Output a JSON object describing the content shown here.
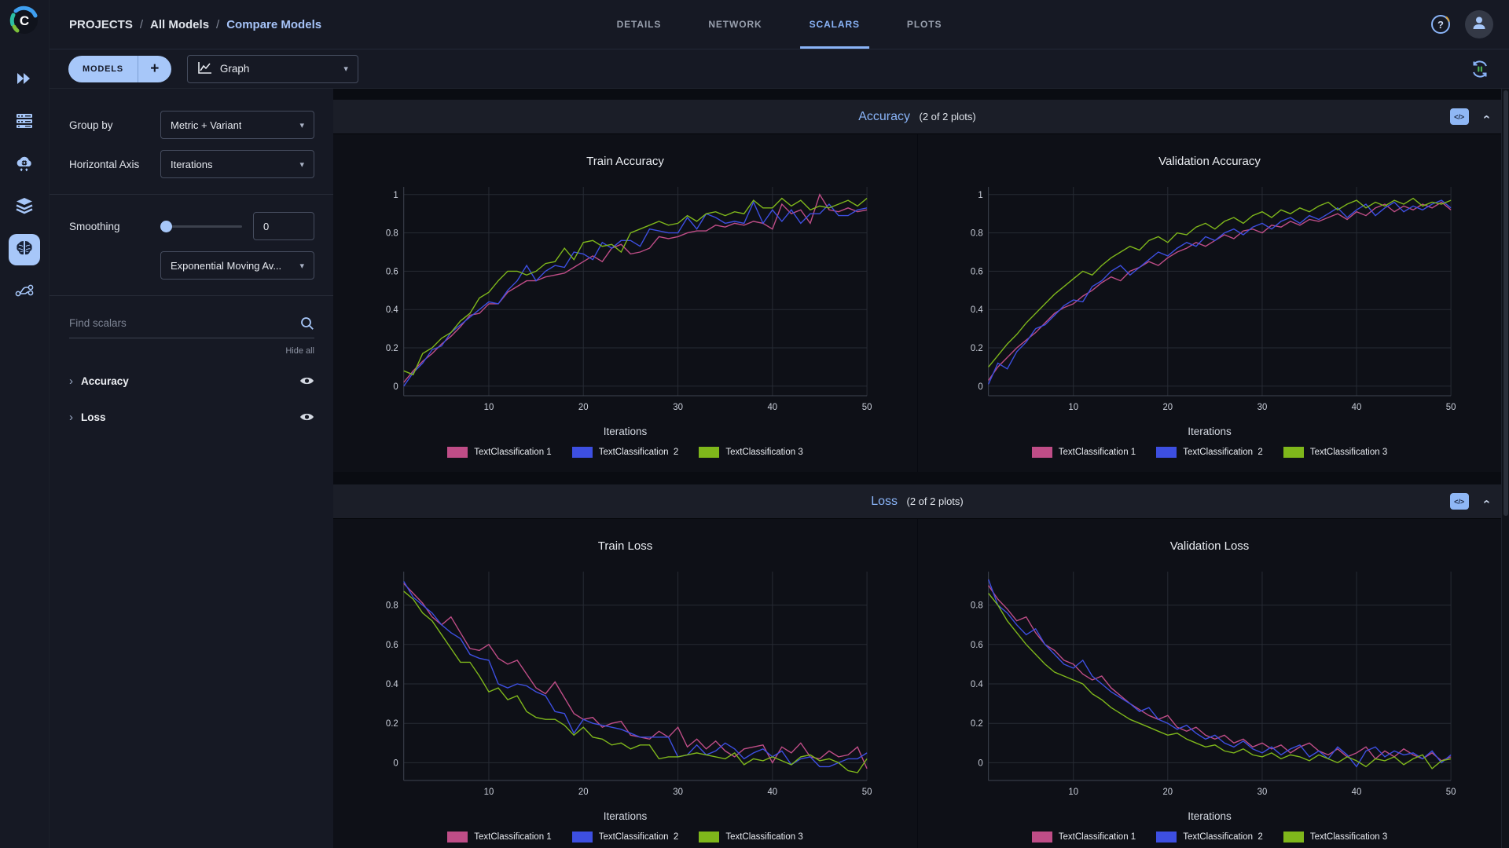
{
  "header": {
    "breadcrumb": [
      "PROJECTS",
      "All Models",
      "Compare Models"
    ],
    "separator": "/",
    "tabs": [
      {
        "label": "DETAILS",
        "active": false
      },
      {
        "label": "NETWORK",
        "active": false
      },
      {
        "label": "SCALARS",
        "active": true
      },
      {
        "label": "PLOTS",
        "active": false
      }
    ]
  },
  "toolbar": {
    "models_button": "MODELS",
    "add_button": "+",
    "view_dropdown": "Graph"
  },
  "icons": {
    "caret_down": "▾",
    "chevron_right": "›",
    "embed": "</>",
    "help": "?",
    "logo_letter": "C"
  },
  "nav_rail_items": [
    {
      "icon": "double-chevron-icon"
    },
    {
      "icon": "server-icon"
    },
    {
      "icon": "cloud-gear-icon"
    },
    {
      "icon": "layers-icon"
    },
    {
      "icon": "brain-icon",
      "active": true
    },
    {
      "icon": "pipeline-icon"
    }
  ],
  "controls": {
    "group_by_label": "Group by",
    "group_by_value": "Metric + Variant",
    "horizontal_axis_label": "Horizontal Axis",
    "horizontal_axis_value": "Iterations",
    "smoothing_label": "Smoothing",
    "smoothing_value": "0",
    "smoothing_type_value": "Exponential Moving Av..."
  },
  "scalars_list": {
    "search_placeholder": "Find scalars",
    "hide_all": "Hide all",
    "groups": [
      {
        "label": "Accuracy"
      },
      {
        "label": "Loss"
      }
    ]
  },
  "sections": [
    {
      "title": "Accuracy",
      "count_note": "(2 of 2 plots)"
    },
    {
      "title": "Loss",
      "count_note": "(2 of 2 plots)"
    }
  ],
  "accent_colors": {
    "light_blue": "#a7c7f9",
    "link_blue": "#8ab4f8",
    "series_pink": "#bf4d87",
    "series_blue": "#3d4fe1",
    "series_green": "#7fb71b"
  },
  "chart_data": [
    {
      "type": "line",
      "title": "Train Accuracy",
      "xlabel": "Iterations",
      "ylabel": "",
      "grid": true,
      "legend_position": "bottom",
      "x_start": 1,
      "x_step": 1,
      "n_points": 50,
      "xticks": [
        10,
        20,
        30,
        40,
        50
      ],
      "yticks": [
        0,
        0.2,
        0.4,
        0.6,
        0.8,
        1
      ],
      "ylim": [
        -0.05,
        1.04
      ],
      "series": [
        {
          "name": "TextClassification 1",
          "color": "#bf4d87",
          "values": [
            0.02,
            0.08,
            0.13,
            0.17,
            0.22,
            0.26,
            0.31,
            0.37,
            0.38,
            0.43,
            0.43,
            0.49,
            0.52,
            0.55,
            0.55,
            0.57,
            0.58,
            0.59,
            0.62,
            0.65,
            0.68,
            0.65,
            0.72,
            0.74,
            0.69,
            0.7,
            0.72,
            0.78,
            0.77,
            0.78,
            0.8,
            0.81,
            0.81,
            0.84,
            0.83,
            0.85,
            0.84,
            0.86,
            0.85,
            0.82,
            0.95,
            0.9,
            0.92,
            0.85,
            1.0,
            0.92,
            0.91,
            0.93,
            0.91,
            0.92
          ]
        },
        {
          "name": "TextClassification  2",
          "color": "#3d4fe1",
          "values": [
            0.0,
            0.07,
            0.12,
            0.19,
            0.21,
            0.28,
            0.32,
            0.36,
            0.4,
            0.44,
            0.43,
            0.5,
            0.55,
            0.63,
            0.55,
            0.6,
            0.63,
            0.62,
            0.7,
            0.69,
            0.66,
            0.75,
            0.72,
            0.76,
            0.76,
            0.73,
            0.82,
            0.81,
            0.8,
            0.8,
            0.88,
            0.82,
            0.9,
            0.88,
            0.85,
            0.86,
            0.85,
            0.96,
            0.85,
            0.92,
            0.86,
            0.92,
            0.85,
            0.9,
            0.9,
            0.95,
            0.89,
            0.89,
            0.92,
            0.93
          ]
        },
        {
          "name": "TextClassification 3",
          "color": "#7fb71b",
          "values": [
            0.08,
            0.06,
            0.17,
            0.2,
            0.25,
            0.28,
            0.34,
            0.38,
            0.46,
            0.49,
            0.55,
            0.6,
            0.6,
            0.58,
            0.6,
            0.64,
            0.65,
            0.72,
            0.66,
            0.75,
            0.76,
            0.73,
            0.74,
            0.7,
            0.8,
            0.82,
            0.84,
            0.86,
            0.84,
            0.85,
            0.89,
            0.86,
            0.9,
            0.91,
            0.89,
            0.91,
            0.9,
            0.97,
            0.93,
            0.93,
            0.98,
            0.94,
            0.97,
            0.92,
            0.94,
            0.93,
            0.95,
            0.97,
            0.94,
            0.98
          ]
        }
      ]
    },
    {
      "type": "line",
      "title": "Validation Accuracy",
      "xlabel": "Iterations",
      "ylabel": "",
      "grid": true,
      "legend_position": "bottom",
      "x_start": 1,
      "x_step": 1,
      "n_points": 50,
      "xticks": [
        10,
        20,
        30,
        40,
        50
      ],
      "yticks": [
        0,
        0.2,
        0.4,
        0.6,
        0.8,
        1
      ],
      "ylim": [
        -0.05,
        1.04
      ],
      "series": [
        {
          "name": "TextClassification 1",
          "color": "#bf4d87",
          "values": [
            0.03,
            0.1,
            0.15,
            0.2,
            0.24,
            0.28,
            0.33,
            0.38,
            0.41,
            0.43,
            0.47,
            0.5,
            0.54,
            0.57,
            0.55,
            0.6,
            0.62,
            0.65,
            0.63,
            0.67,
            0.7,
            0.72,
            0.75,
            0.73,
            0.76,
            0.79,
            0.77,
            0.81,
            0.82,
            0.8,
            0.84,
            0.83,
            0.86,
            0.84,
            0.87,
            0.86,
            0.88,
            0.9,
            0.87,
            0.91,
            0.89,
            0.93,
            0.95,
            0.91,
            0.94,
            0.92,
            0.95,
            0.93,
            0.96,
            0.92
          ]
        },
        {
          "name": "TextClassification  2",
          "color": "#3d4fe1",
          "values": [
            0.01,
            0.12,
            0.09,
            0.18,
            0.23,
            0.3,
            0.32,
            0.37,
            0.42,
            0.45,
            0.44,
            0.52,
            0.55,
            0.6,
            0.63,
            0.58,
            0.62,
            0.66,
            0.7,
            0.68,
            0.72,
            0.75,
            0.73,
            0.78,
            0.76,
            0.8,
            0.82,
            0.79,
            0.83,
            0.85,
            0.82,
            0.86,
            0.88,
            0.85,
            0.89,
            0.87,
            0.9,
            0.93,
            0.88,
            0.92,
            0.95,
            0.89,
            0.93,
            0.96,
            0.91,
            0.94,
            0.92,
            0.95,
            0.97,
            0.93
          ]
        },
        {
          "name": "TextClassification 3",
          "color": "#7fb71b",
          "values": [
            0.1,
            0.16,
            0.22,
            0.27,
            0.33,
            0.38,
            0.43,
            0.48,
            0.52,
            0.56,
            0.6,
            0.58,
            0.63,
            0.67,
            0.7,
            0.73,
            0.71,
            0.76,
            0.78,
            0.75,
            0.8,
            0.79,
            0.83,
            0.85,
            0.82,
            0.86,
            0.88,
            0.85,
            0.89,
            0.91,
            0.88,
            0.92,
            0.9,
            0.93,
            0.91,
            0.94,
            0.96,
            0.92,
            0.95,
            0.97,
            0.93,
            0.96,
            0.94,
            0.97,
            0.95,
            0.98,
            0.94,
            0.96,
            0.95,
            0.97
          ]
        }
      ]
    },
    {
      "type": "line",
      "title": "Train Loss",
      "xlabel": "Iterations",
      "ylabel": "",
      "grid": true,
      "legend_position": "bottom",
      "x_start": 1,
      "x_step": 1,
      "n_points": 50,
      "xticks": [
        10,
        20,
        30,
        40,
        50
      ],
      "yticks": [
        0,
        0.2,
        0.4,
        0.6,
        0.8
      ],
      "ylim": [
        -0.09,
        0.97
      ],
      "series": [
        {
          "name": "TextClassification 1",
          "color": "#bf4d87",
          "values": [
            0.91,
            0.86,
            0.81,
            0.74,
            0.7,
            0.74,
            0.66,
            0.58,
            0.57,
            0.6,
            0.53,
            0.5,
            0.52,
            0.45,
            0.38,
            0.35,
            0.41,
            0.33,
            0.25,
            0.22,
            0.23,
            0.18,
            0.2,
            0.21,
            0.14,
            0.13,
            0.12,
            0.16,
            0.13,
            0.18,
            0.08,
            0.12,
            0.07,
            0.11,
            0.06,
            0.03,
            0.07,
            0.08,
            0.09,
            0.0,
            0.08,
            0.05,
            0.1,
            0.03,
            0.02,
            0.06,
            0.03,
            0.04,
            0.08,
            -0.03
          ]
        },
        {
          "name": "TextClassification  2",
          "color": "#3d4fe1",
          "values": [
            0.92,
            0.84,
            0.8,
            0.76,
            0.7,
            0.66,
            0.63,
            0.55,
            0.53,
            0.52,
            0.4,
            0.38,
            0.4,
            0.39,
            0.36,
            0.34,
            0.26,
            0.25,
            0.15,
            0.22,
            0.2,
            0.19,
            0.18,
            0.17,
            0.15,
            0.13,
            0.13,
            0.13,
            0.13,
            0.03,
            0.04,
            0.09,
            0.04,
            0.06,
            0.1,
            0.07,
            0.02,
            0.05,
            0.07,
            0.03,
            0.06,
            -0.01,
            0.02,
            0.03,
            -0.02,
            -0.02,
            0.0,
            0.02,
            0.02,
            0.05
          ]
        },
        {
          "name": "TextClassification 3",
          "color": "#7fb71b",
          "values": [
            0.87,
            0.83,
            0.76,
            0.72,
            0.65,
            0.58,
            0.51,
            0.51,
            0.44,
            0.36,
            0.38,
            0.32,
            0.34,
            0.26,
            0.23,
            0.22,
            0.22,
            0.19,
            0.14,
            0.18,
            0.13,
            0.12,
            0.09,
            0.1,
            0.07,
            0.09,
            0.09,
            0.02,
            0.03,
            0.03,
            0.04,
            0.05,
            0.04,
            0.03,
            0.02,
            0.05,
            -0.01,
            0.02,
            0.01,
            0.03,
            0.01,
            -0.01,
            0.03,
            0.04,
            0.01,
            0.02,
            0.0,
            -0.04,
            -0.05,
            0.02
          ]
        }
      ]
    },
    {
      "type": "line",
      "title": "Validation Loss",
      "xlabel": "Iterations",
      "ylabel": "",
      "grid": true,
      "legend_position": "bottom",
      "x_start": 1,
      "x_step": 1,
      "n_points": 50,
      "xticks": [
        10,
        20,
        30,
        40,
        50
      ],
      "yticks": [
        0,
        0.2,
        0.4,
        0.6,
        0.8
      ],
      "ylim": [
        -0.09,
        0.97
      ],
      "series": [
        {
          "name": "TextClassification 1",
          "color": "#bf4d87",
          "values": [
            0.9,
            0.83,
            0.78,
            0.72,
            0.74,
            0.66,
            0.6,
            0.57,
            0.52,
            0.5,
            0.45,
            0.42,
            0.44,
            0.38,
            0.34,
            0.3,
            0.27,
            0.24,
            0.22,
            0.24,
            0.18,
            0.16,
            0.18,
            0.14,
            0.12,
            0.14,
            0.1,
            0.12,
            0.08,
            0.1,
            0.07,
            0.09,
            0.05,
            0.08,
            0.1,
            0.06,
            0.04,
            0.07,
            0.03,
            0.05,
            0.08,
            0.02,
            0.06,
            0.03,
            0.07,
            0.04,
            0.02,
            0.05,
            0.01,
            0.03
          ]
        },
        {
          "name": "TextClassification  2",
          "color": "#3d4fe1",
          "values": [
            0.93,
            0.8,
            0.76,
            0.7,
            0.65,
            0.68,
            0.6,
            0.55,
            0.5,
            0.48,
            0.52,
            0.44,
            0.4,
            0.36,
            0.33,
            0.3,
            0.26,
            0.28,
            0.22,
            0.2,
            0.17,
            0.19,
            0.15,
            0.12,
            0.14,
            0.1,
            0.08,
            0.11,
            0.07,
            0.05,
            0.08,
            0.04,
            0.07,
            0.09,
            0.03,
            0.06,
            0.02,
            0.08,
            0.04,
            -0.02,
            0.06,
            0.08,
            0.03,
            0.06,
            0.04,
            0.05,
            0.02,
            0.06,
            0.0,
            0.04
          ]
        },
        {
          "name": "TextClassification 3",
          "color": "#7fb71b",
          "values": [
            0.86,
            0.8,
            0.72,
            0.66,
            0.6,
            0.55,
            0.5,
            0.46,
            0.44,
            0.42,
            0.4,
            0.35,
            0.32,
            0.28,
            0.25,
            0.22,
            0.2,
            0.18,
            0.16,
            0.14,
            0.15,
            0.12,
            0.1,
            0.08,
            0.09,
            0.06,
            0.05,
            0.07,
            0.04,
            0.03,
            0.05,
            0.02,
            0.04,
            0.03,
            0.01,
            0.04,
            0.02,
            0.0,
            0.03,
            0.01,
            -0.02,
            0.02,
            0.01,
            0.03,
            -0.01,
            0.02,
            0.04,
            -0.03,
            0.01,
            0.02
          ]
        }
      ]
    }
  ]
}
